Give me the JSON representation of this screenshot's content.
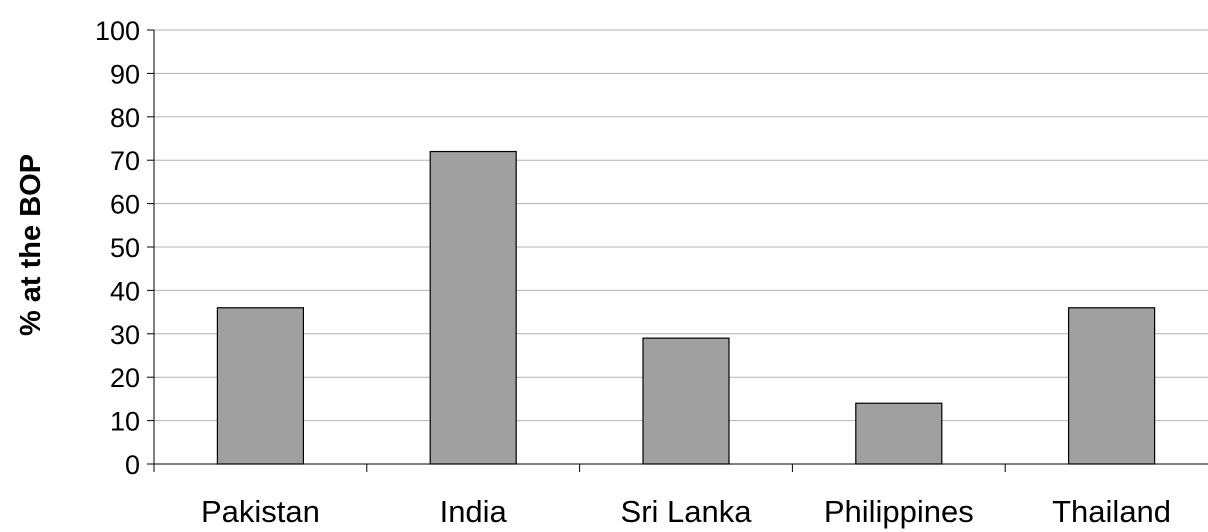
{
  "chart_data": {
    "type": "bar",
    "title": "",
    "xlabel": "",
    "ylabel": "% at the BOP",
    "categories": [
      "Pakistan",
      "India",
      "Sri Lanka",
      "Philippines",
      "Thailand"
    ],
    "values": [
      36,
      72,
      29,
      14,
      36
    ],
    "ylim": [
      0,
      100
    ],
    "yticks": [
      0,
      10,
      20,
      30,
      40,
      50,
      60,
      70,
      80,
      90,
      100
    ],
    "grid": true,
    "legend": "none",
    "colors": {
      "bar_fill": "#a0a0a0",
      "bar_stroke": "#000000",
      "gridline": "#b3b3b3",
      "axis": "#000000"
    }
  }
}
